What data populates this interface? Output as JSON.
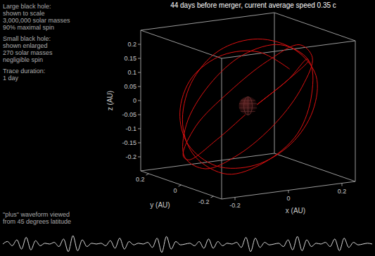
{
  "chart_data": {
    "type": "line3d",
    "title": "44 days before merger, current average speed 0.35 c",
    "notes": [
      [
        "Large black hole:",
        "shown to scale",
        "3,000,000 solar masses",
        "90% maximal spin"
      ],
      [
        "Small black hole:",
        "shown enlarged",
        "270 solar masses",
        "negligible spin"
      ],
      [
        "Trace duration:",
        "1 day"
      ]
    ],
    "x_label": "x (AU)",
    "y_label": "y (AU)",
    "z_label": "z (AU)",
    "xlim": [
      -0.25,
      0.25
    ],
    "ylim": [
      -0.25,
      0.25
    ],
    "zlim": [
      -0.25,
      0.25
    ],
    "xticks": [
      -0.2,
      0,
      0.2
    ],
    "yticks": [
      -0.2,
      0,
      0.2
    ],
    "zticks": [
      -0.2,
      -0.15,
      -0.1,
      -0.05,
      0,
      0.05,
      0.1,
      0.15,
      0.2
    ],
    "series": [
      {
        "color": "#dd1111",
        "x": [
          0.18,
          0.12,
          0.02,
          -0.09,
          -0.17,
          -0.2,
          -0.16,
          -0.07,
          0.04,
          0.14,
          0.2,
          0.19,
          0.11,
          0,
          -0.11,
          -0.19,
          -0.21,
          -0.15,
          -0.05,
          0.07,
          0.16,
          0.21,
          0.17,
          0.08,
          -0.03,
          -0.14,
          -0.2,
          -0.19,
          -0.12,
          -0.01,
          0.1,
          0.18,
          0.2,
          0.14,
          0.04,
          -0.08,
          -0.17,
          -0.21,
          -0.17,
          -0.08,
          0.03,
          0.13,
          0.19,
          0.18,
          0.1
        ],
        "y": [
          0.04,
          0.13,
          0.19,
          0.2,
          0.14,
          0.04,
          -0.07,
          -0.16,
          -0.2,
          -0.17,
          -0.09,
          0.02,
          0.12,
          0.18,
          0.17,
          0.09,
          -0.02,
          -0.12,
          -0.18,
          -0.19,
          -0.13,
          -0.03,
          0.08,
          0.16,
          0.19,
          0.15,
          0.06,
          -0.05,
          -0.14,
          -0.19,
          -0.17,
          -0.1,
          0.01,
          0.11,
          0.18,
          0.19,
          0.12,
          0.02,
          -0.09,
          -0.17,
          -0.2,
          -0.15,
          -0.06,
          0.05,
          0.14
        ],
        "z": [
          0.1,
          0.15,
          0.14,
          0.07,
          -0.03,
          -0.12,
          -0.18,
          -0.17,
          -0.1,
          0,
          0.1,
          0.17,
          0.2,
          0.16,
          0.06,
          -0.06,
          -0.15,
          -0.2,
          -0.16,
          -0.07,
          0.05,
          0.14,
          0.18,
          0.14,
          0.04,
          -0.08,
          -0.17,
          -0.19,
          -0.13,
          -0.02,
          0.09,
          0.17,
          0.19,
          0.12,
          0.01,
          -0.1,
          -0.18,
          -0.17,
          -0.08,
          0.04,
          0.13,
          0.18,
          0.15,
          0.06,
          -0.05
        ]
      }
    ],
    "waveform": {
      "label": [
        "\"plus\" waveform viewed",
        "from 45 degrees latitude"
      ],
      "color": "#dddddd",
      "ylim": [
        -1,
        1
      ],
      "values": [
        0,
        0.3,
        -0.2,
        0.5,
        -0.6,
        0.8,
        -0.7,
        0.4,
        -0.2,
        0.1,
        0,
        0.2,
        -0.3,
        0.6,
        -0.9,
        1,
        -0.8,
        0.5,
        -0.3,
        0.1,
        0,
        0.1,
        -0.2,
        0.4,
        -0.5,
        0.7,
        -0.6,
        0.3,
        -0.1,
        0.1,
        0,
        0.2,
        -0.4,
        0.7,
        -1,
        0.9,
        -0.6,
        0.3,
        -0.1,
        0,
        0.1,
        -0.2,
        0.3,
        -0.5,
        0.6,
        -0.5,
        0.3,
        -0.2,
        0.1,
        0,
        0.2,
        -0.4,
        0.8,
        -0.9,
        0.7,
        -0.4,
        0.2,
        -0.1,
        0,
        0.1,
        -0.3,
        0.5,
        -0.7,
        0.9,
        -0.8,
        0.5,
        -0.3,
        0.1,
        0,
        0.2,
        -0.3,
        0.6,
        -0.8,
        0.7,
        -0.4,
        0.2,
        -0.1,
        0,
        0.1,
        0
      ]
    }
  }
}
